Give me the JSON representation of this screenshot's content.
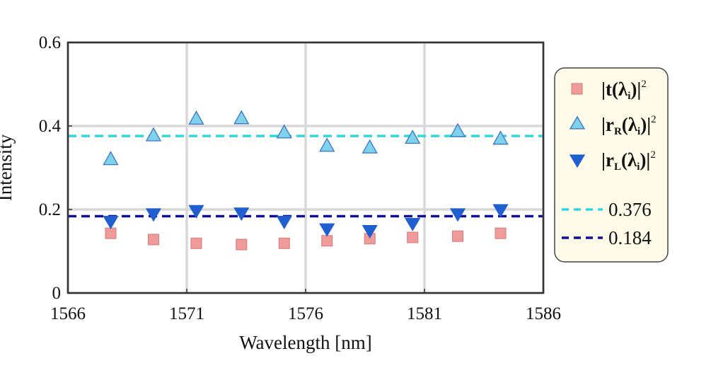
{
  "chart_data": {
    "type": "scatter",
    "xlabel": "Wavelength [nm]",
    "ylabel": "Intensity",
    "xlim": [
      1566,
      1586
    ],
    "ylim": [
      0,
      0.6
    ],
    "xticks": [
      1566,
      1571,
      1576,
      1581,
      1586
    ],
    "yticks": [
      0,
      0.2,
      0.4,
      0.6
    ],
    "xtick_labels": [
      "1566",
      "1571",
      "1576",
      "1581",
      "1586"
    ],
    "ytick_labels": [
      "0",
      "0.2",
      "0.4",
      "0.6"
    ],
    "grid": true,
    "legend_position": "outside-right",
    "series": [
      {
        "key": "t",
        "marker": "square",
        "color": "#f09a9a",
        "edge": "#d57a7a",
        "x": [
          1567.8,
          1569.6,
          1571.4,
          1573.3,
          1575.1,
          1576.9,
          1578.7,
          1580.5,
          1582.4,
          1584.2
        ],
        "y": [
          0.143,
          0.128,
          0.119,
          0.116,
          0.119,
          0.125,
          0.13,
          0.133,
          0.136,
          0.143
        ]
      },
      {
        "key": "rR",
        "marker": "triangle-up",
        "color": "#7fd2ec",
        "edge": "#3a73c2",
        "x": [
          1567.8,
          1569.6,
          1571.4,
          1573.3,
          1575.1,
          1576.9,
          1578.7,
          1580.5,
          1582.4,
          1584.2
        ],
        "y": [
          0.321,
          0.378,
          0.418,
          0.419,
          0.385,
          0.353,
          0.349,
          0.372,
          0.388,
          0.37
        ]
      },
      {
        "key": "rL",
        "marker": "triangle-down",
        "color": "#1f5fd0",
        "edge": "#1f5fd0",
        "x": [
          1567.8,
          1569.6,
          1571.4,
          1573.3,
          1575.1,
          1576.9,
          1578.7,
          1580.5,
          1582.4,
          1584.2
        ],
        "y": [
          0.17,
          0.188,
          0.196,
          0.19,
          0.17,
          0.152,
          0.148,
          0.165,
          0.188,
          0.198
        ]
      }
    ],
    "reference_lines": [
      {
        "value": 0.376,
        "label": "0.376",
        "color": "#33d6e0",
        "style": "dashed"
      },
      {
        "value": 0.184,
        "label": "0.184",
        "color": "#10109a",
        "style": "dashed"
      }
    ]
  },
  "legend": {
    "background": "#fffbe8",
    "items": [
      {
        "marker": "square",
        "label_main": "|t(λ",
        "label_sub": "i",
        "label_close": ")|",
        "label_sup": "2"
      },
      {
        "marker": "triangle-up",
        "label_main": "|r",
        "label_sub1": "R",
        "label_mid": "(λ",
        "label_sub": "i",
        "label_close": ")|",
        "label_sup": "2"
      },
      {
        "marker": "triangle-down",
        "label_main": "|r",
        "label_sub1": "L",
        "label_mid": "(λ",
        "label_sub": "i",
        "label_close": ")|",
        "label_sup": "2"
      },
      {
        "line_label": "0.376"
      },
      {
        "line_label": "0.184"
      }
    ]
  }
}
